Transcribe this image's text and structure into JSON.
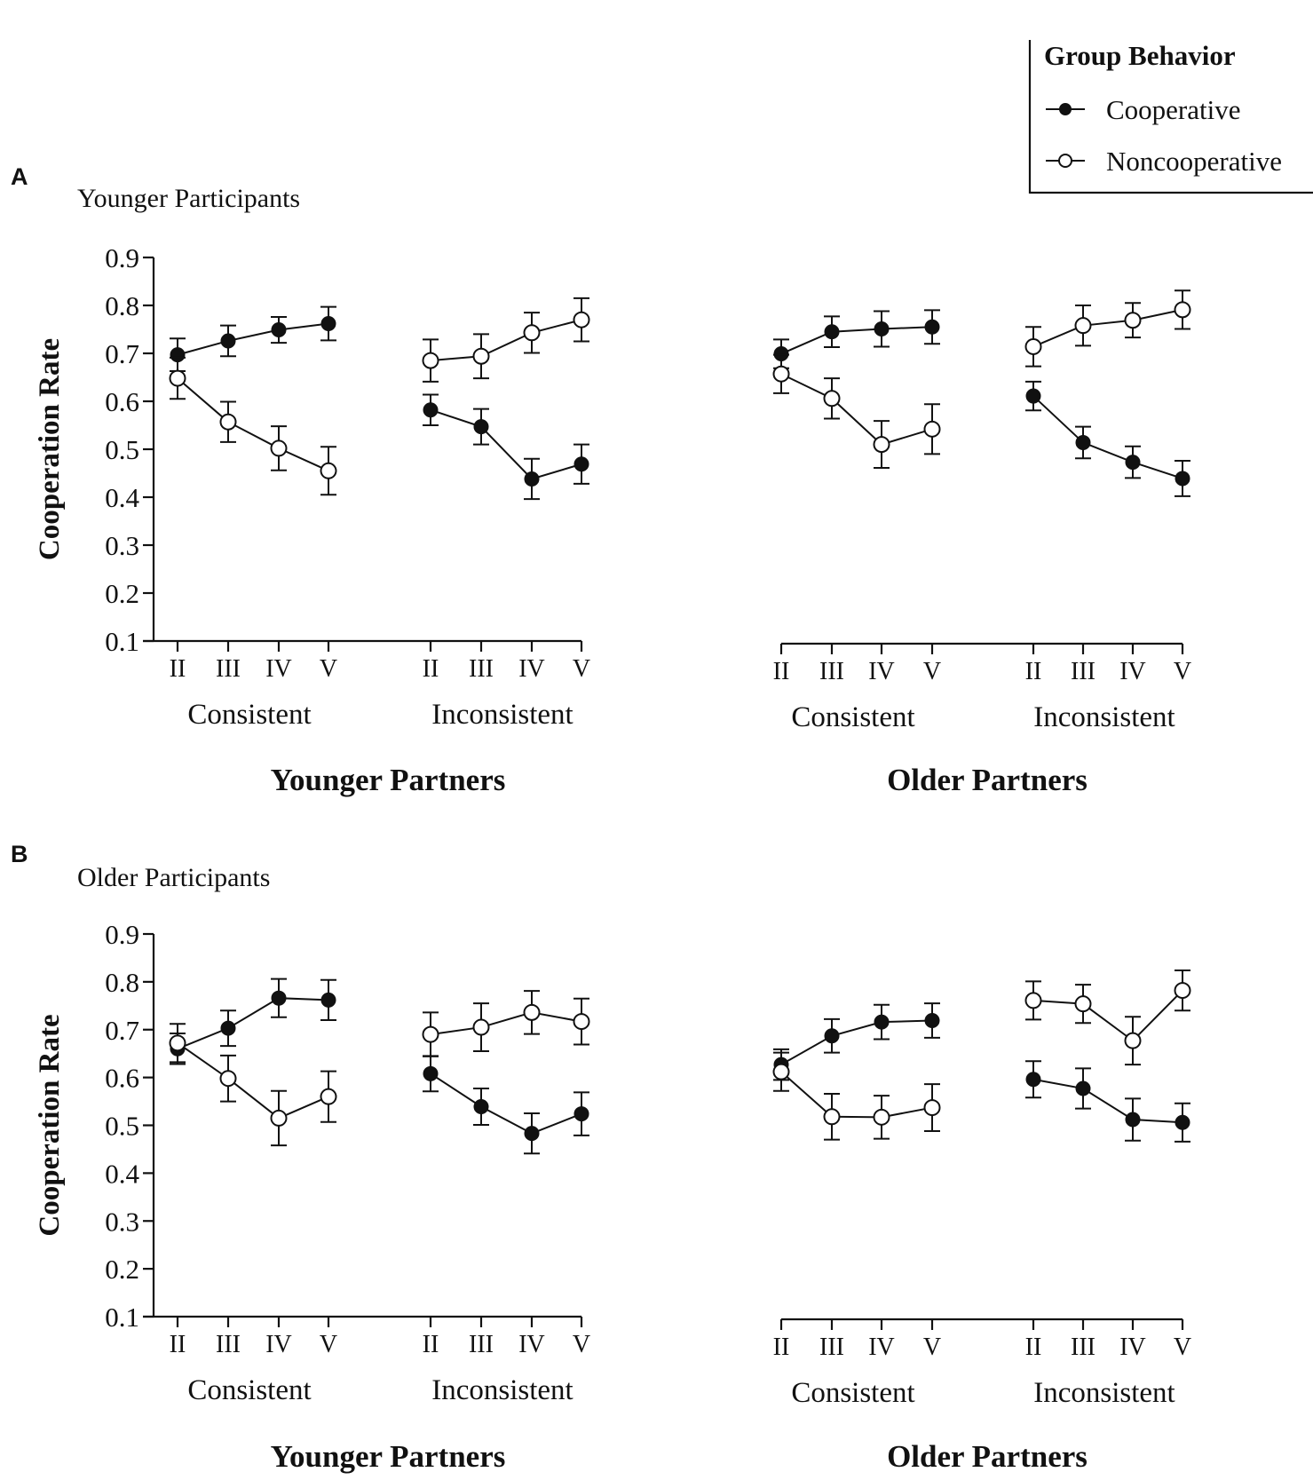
{
  "legend": {
    "title": "Group Behavior",
    "entries": [
      "Cooperative",
      "Noncooperative"
    ]
  },
  "colors": {
    "ink": "#111111",
    "open_fill": "#ffffff"
  },
  "chart_data": [
    {
      "type": "line",
      "panel_letter": "A",
      "title": "Younger Participants",
      "ylabel": "Cooperation Rate",
      "ylim": [
        0.1,
        0.9
      ],
      "yticks": [
        "0.1",
        "0.2",
        "0.3",
        "0.4",
        "0.5",
        "0.6",
        "0.7",
        "0.8",
        "0.9"
      ],
      "groups": [
        {
          "name": "Younger Partners",
          "blocks": [
            {
              "name": "Consistent",
              "categories": [
                "II",
                "III",
                "IV",
                "V"
              ],
              "series": [
                {
                  "name": "Cooperative",
                  "values": [
                    0.697,
                    0.726,
                    0.749,
                    0.762
                  ],
                  "errors": [
                    0.034,
                    0.032,
                    0.027,
                    0.035
                  ]
                },
                {
                  "name": "Noncooperative",
                  "values": [
                    0.648,
                    0.557,
                    0.502,
                    0.455
                  ],
                  "errors": [
                    0.043,
                    0.042,
                    0.046,
                    0.05
                  ]
                }
              ]
            },
            {
              "name": "Inconsistent",
              "categories": [
                "II",
                "III",
                "IV",
                "V"
              ],
              "series": [
                {
                  "name": "Cooperative",
                  "values": [
                    0.582,
                    0.547,
                    0.438,
                    0.469
                  ],
                  "errors": [
                    0.032,
                    0.037,
                    0.042,
                    0.041
                  ]
                },
                {
                  "name": "Noncooperative",
                  "values": [
                    0.685,
                    0.694,
                    0.743,
                    0.77
                  ],
                  "errors": [
                    0.044,
                    0.046,
                    0.042,
                    0.045
                  ]
                }
              ]
            }
          ]
        },
        {
          "name": "Older Partners",
          "blocks": [
            {
              "name": "Consistent",
              "categories": [
                "II",
                "III",
                "IV",
                "V"
              ],
              "series": [
                {
                  "name": "Cooperative",
                  "values": [
                    0.699,
                    0.745,
                    0.751,
                    0.755
                  ],
                  "errors": [
                    0.03,
                    0.032,
                    0.037,
                    0.035
                  ]
                },
                {
                  "name": "Noncooperative",
                  "values": [
                    0.657,
                    0.606,
                    0.51,
                    0.542
                  ],
                  "errors": [
                    0.04,
                    0.042,
                    0.049,
                    0.052
                  ]
                }
              ]
            },
            {
              "name": "Inconsistent",
              "categories": [
                "II",
                "III",
                "IV",
                "V"
              ],
              "series": [
                {
                  "name": "Cooperative",
                  "values": [
                    0.611,
                    0.514,
                    0.473,
                    0.439
                  ],
                  "errors": [
                    0.03,
                    0.033,
                    0.033,
                    0.037
                  ]
                },
                {
                  "name": "Noncooperative",
                  "values": [
                    0.714,
                    0.758,
                    0.769,
                    0.791
                  ],
                  "errors": [
                    0.041,
                    0.042,
                    0.036,
                    0.04
                  ]
                }
              ]
            }
          ]
        }
      ]
    },
    {
      "type": "line",
      "panel_letter": "B",
      "title": "Older Participants",
      "ylabel": "Cooperation Rate",
      "ylim": [
        0.1,
        0.9
      ],
      "yticks": [
        "0.1",
        "0.2",
        "0.3",
        "0.4",
        "0.5",
        "0.6",
        "0.7",
        "0.8",
        "0.9"
      ],
      "groups": [
        {
          "name": "Younger Partners",
          "blocks": [
            {
              "name": "Consistent",
              "categories": [
                "II",
                "III",
                "IV",
                "V"
              ],
              "series": [
                {
                  "name": "Cooperative",
                  "values": [
                    0.66,
                    0.703,
                    0.766,
                    0.762
                  ],
                  "errors": [
                    0.032,
                    0.037,
                    0.04,
                    0.042
                  ]
                },
                {
                  "name": "Noncooperative",
                  "values": [
                    0.672,
                    0.598,
                    0.515,
                    0.56
                  ],
                  "errors": [
                    0.04,
                    0.048,
                    0.057,
                    0.053
                  ]
                }
              ]
            },
            {
              "name": "Inconsistent",
              "categories": [
                "II",
                "III",
                "IV",
                "V"
              ],
              "series": [
                {
                  "name": "Cooperative",
                  "values": [
                    0.608,
                    0.539,
                    0.483,
                    0.524
                  ],
                  "errors": [
                    0.037,
                    0.038,
                    0.042,
                    0.045
                  ]
                },
                {
                  "name": "Noncooperative",
                  "values": [
                    0.69,
                    0.705,
                    0.736,
                    0.717
                  ],
                  "errors": [
                    0.046,
                    0.05,
                    0.045,
                    0.048
                  ]
                }
              ]
            }
          ]
        },
        {
          "name": "Older Partners",
          "blocks": [
            {
              "name": "Consistent",
              "categories": [
                "II",
                "III",
                "IV",
                "V"
              ],
              "series": [
                {
                  "name": "Cooperative",
                  "values": [
                    0.627,
                    0.687,
                    0.716,
                    0.719
                  ],
                  "errors": [
                    0.032,
                    0.035,
                    0.036,
                    0.036
                  ]
                },
                {
                  "name": "Noncooperative",
                  "values": [
                    0.612,
                    0.518,
                    0.517,
                    0.537
                  ],
                  "errors": [
                    0.04,
                    0.048,
                    0.045,
                    0.049
                  ]
                }
              ]
            },
            {
              "name": "Inconsistent",
              "categories": [
                "II",
                "III",
                "IV",
                "V"
              ],
              "series": [
                {
                  "name": "Cooperative",
                  "values": [
                    0.596,
                    0.577,
                    0.512,
                    0.506
                  ],
                  "errors": [
                    0.038,
                    0.042,
                    0.044,
                    0.04
                  ]
                },
                {
                  "name": "Noncooperative",
                  "values": [
                    0.761,
                    0.754,
                    0.677,
                    0.782
                  ],
                  "errors": [
                    0.04,
                    0.04,
                    0.05,
                    0.042
                  ]
                }
              ]
            }
          ]
        }
      ]
    }
  ]
}
